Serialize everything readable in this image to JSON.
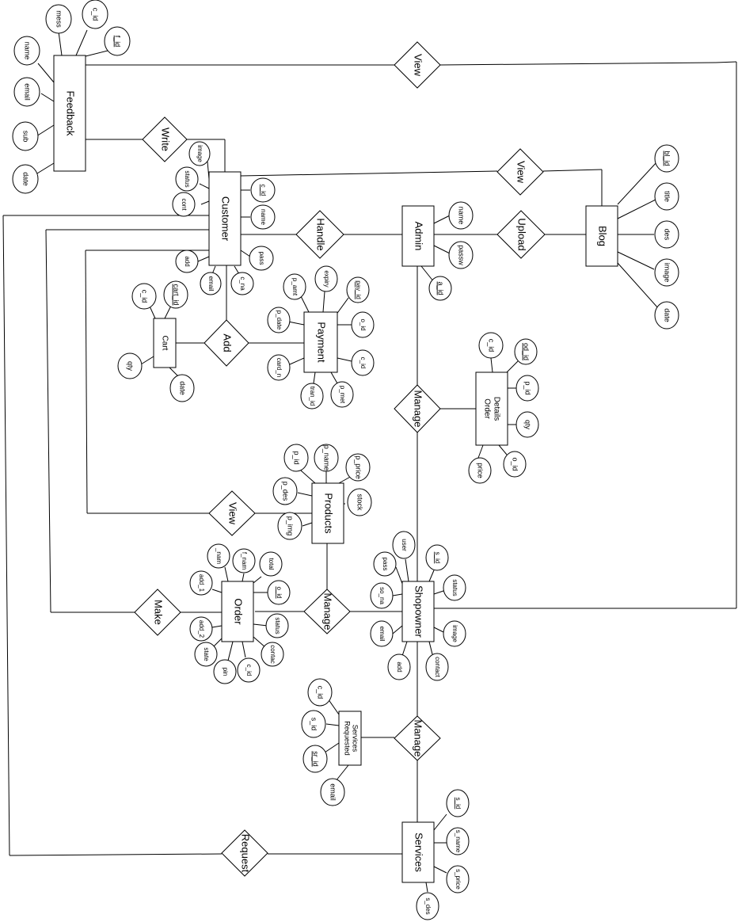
{
  "entities": {
    "feedback": "Feedback",
    "customer": "Customer",
    "admin": "Admin",
    "blog": "Blog",
    "cart": "Cart",
    "payment": "Payment",
    "order_details": [
      "Order",
      "Details"
    ],
    "products": "Products",
    "order": "Order",
    "shopowner": "Shopowner",
    "requested_services": [
      "Requested",
      "Services"
    ],
    "services": "Services"
  },
  "relationships": {
    "view_feedback": "View",
    "write": "Write",
    "view_blog": "View",
    "handle": "Handle",
    "upload": "Upload",
    "add": "Add",
    "manage_order_details": "Manage",
    "view_products": "View",
    "make": "Make",
    "manage_order": "Manage",
    "manage_services": "Manage",
    "request": "Request"
  },
  "attributes": {
    "feedback": [
      "mess",
      "c_id",
      "f_id",
      "name",
      "email",
      "sub",
      "date"
    ],
    "customer": [
      "image",
      "status",
      "cont",
      "c_id",
      "name",
      "pass",
      "c_na",
      "email",
      "add"
    ],
    "admin": [
      "name",
      "passw",
      "a_id"
    ],
    "blog": [
      "bl_id",
      "title",
      "des",
      "image",
      "date"
    ],
    "cart": [
      "c_id",
      "cart_id",
      "qty",
      "date"
    ],
    "payment": [
      "p_amt",
      "expiry",
      "pay_id",
      "p_date",
      "o_id",
      "card_n",
      "c_id",
      "tran_id",
      "p_met"
    ],
    "order_details": [
      "c_id",
      "od_id",
      "p_id",
      "qty",
      "o_id",
      "price"
    ],
    "products": [
      "p_id",
      "p_name",
      "p_price",
      "p_des",
      "stock",
      "p_img"
    ],
    "order": [
      "_nam",
      "f_nam",
      "add_1",
      "total",
      "o_id",
      "add_2",
      "status",
      "state",
      "pin",
      "c_id",
      "contac"
    ],
    "shopowner": [
      "user",
      "pass",
      "s_id",
      "so_na",
      "status",
      "email",
      "image",
      "add",
      "contact"
    ],
    "requested_services": [
      "c_id",
      "s_id",
      "sr_id",
      "email"
    ],
    "services": [
      "s_id",
      "s_name",
      "s_price",
      "s_des"
    ]
  },
  "key_attributes": [
    "f_id",
    "c_id",
    "bl_id",
    "pay_id",
    "cart_id",
    "od_id",
    "o_id",
    "s_id",
    "sr_id"
  ]
}
